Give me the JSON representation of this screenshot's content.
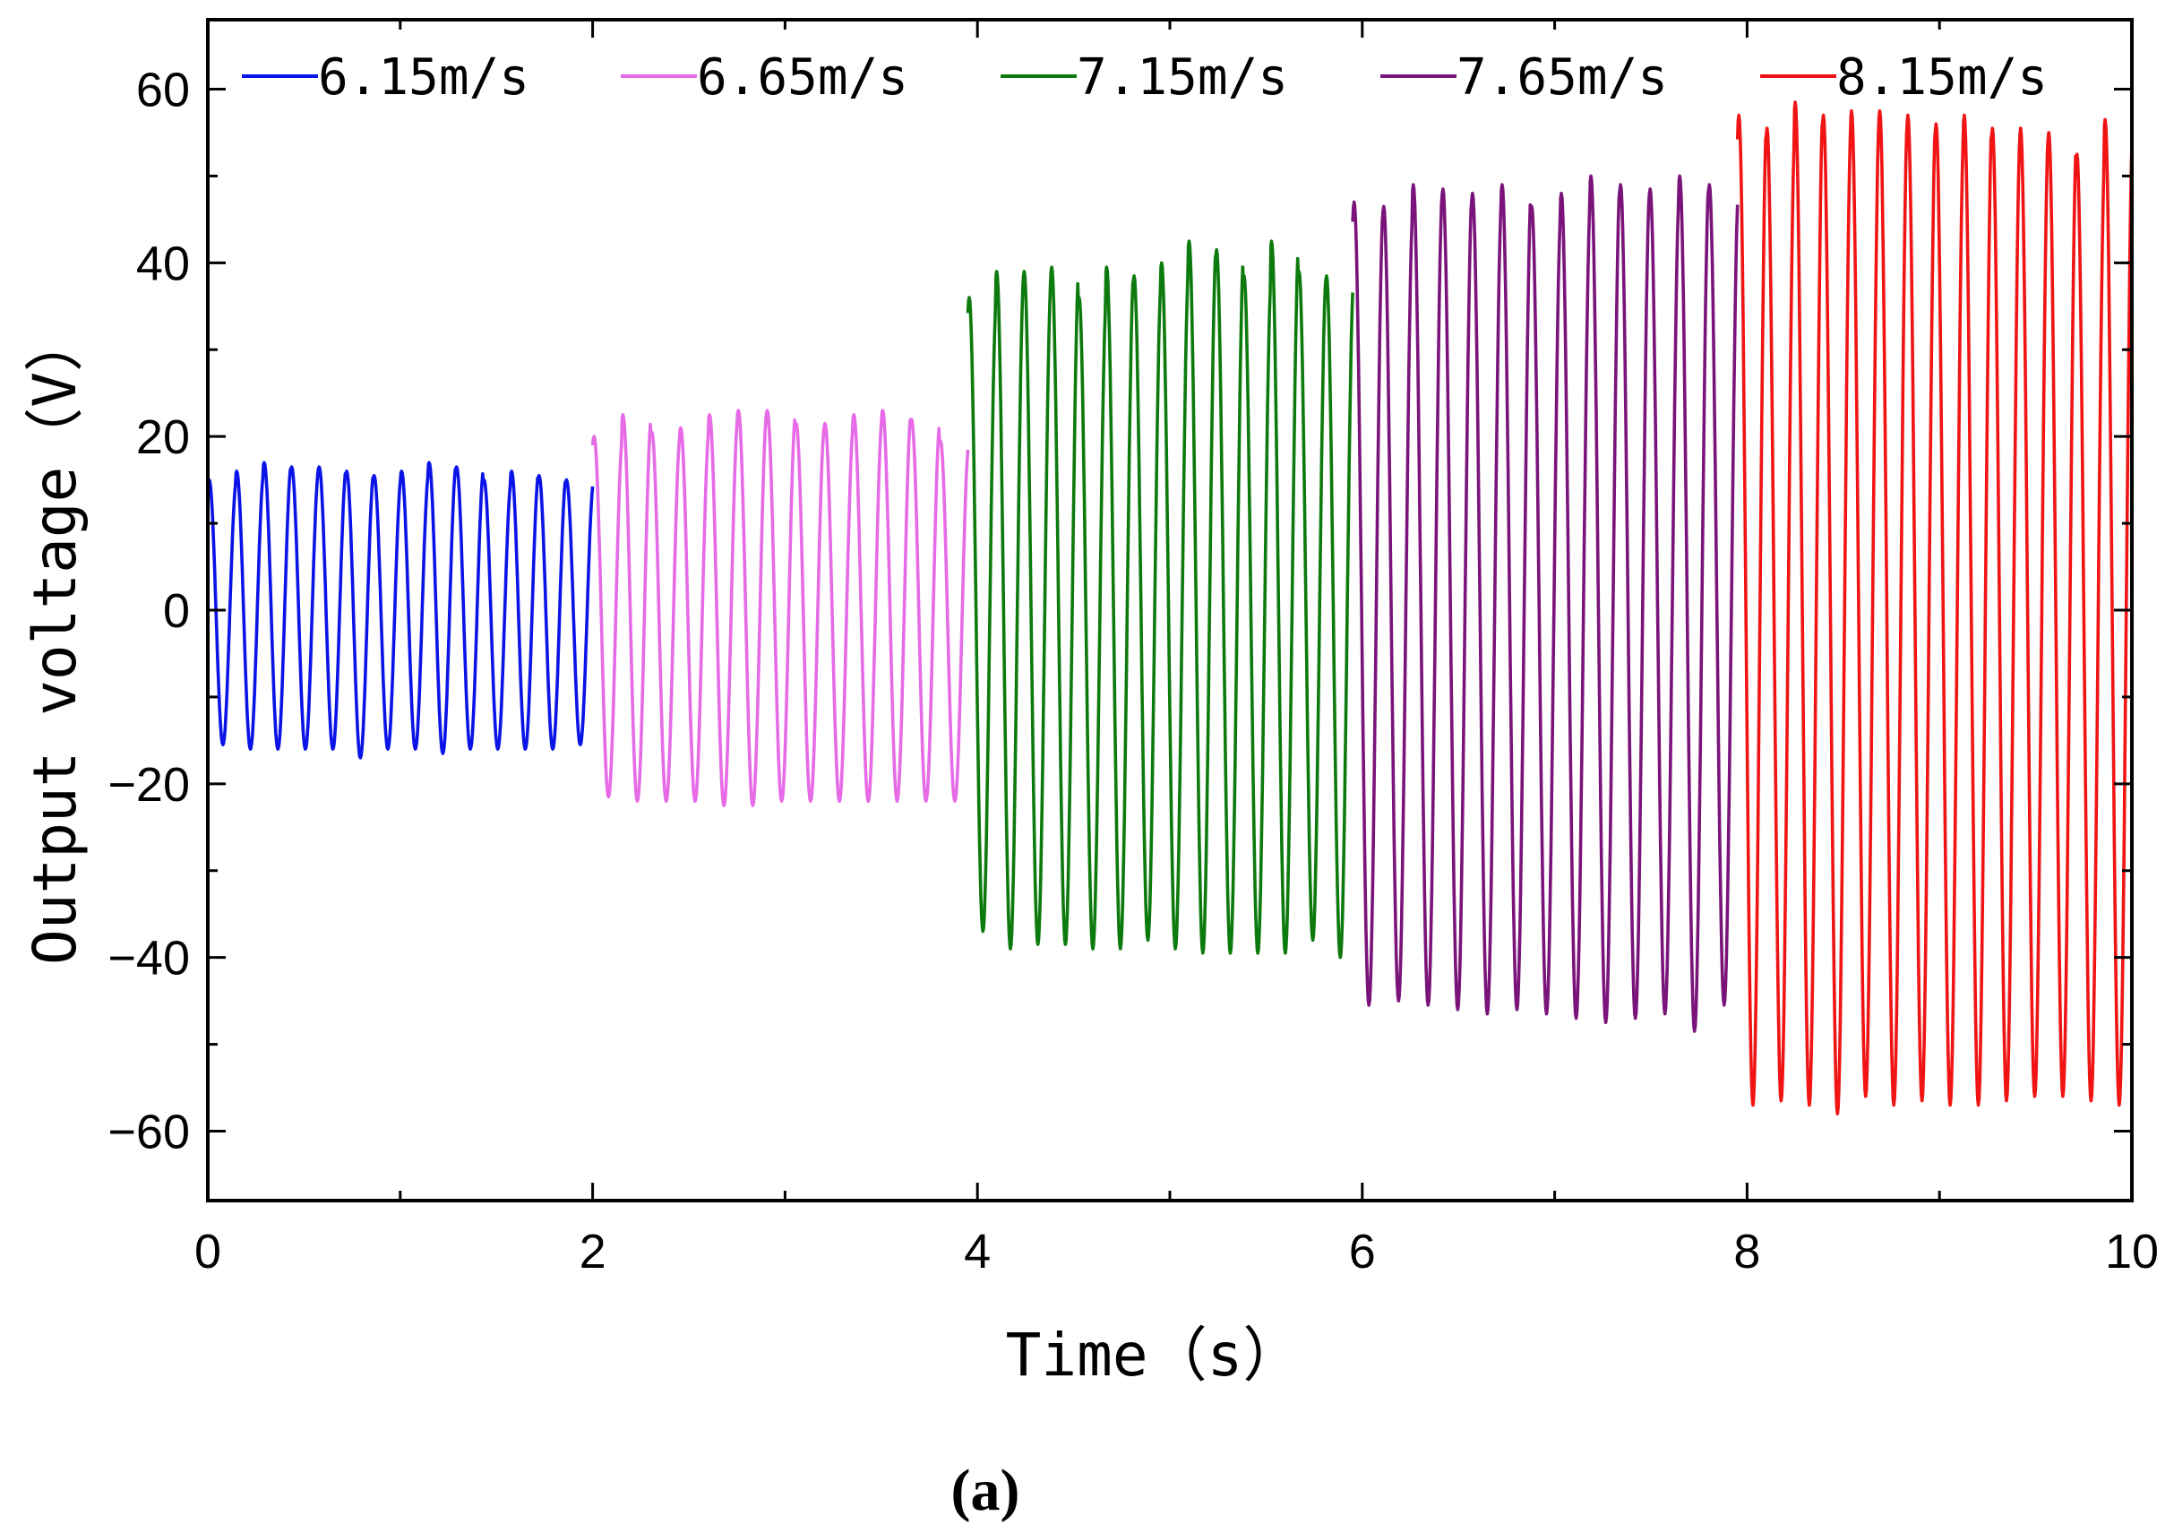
{
  "chart_data": {
    "type": "line",
    "title": "",
    "xlabel": "Time（s）",
    "ylabel": "Output voltage（V）",
    "xlim": [
      0,
      10
    ],
    "ylim": [
      -68,
      68
    ],
    "x_ticks": [
      "0",
      "2",
      "4",
      "6",
      "8",
      "10"
    ],
    "y_ticks": [
      "60",
      "40",
      "20",
      "0",
      "−20",
      "−40",
      "−60"
    ],
    "grid": false,
    "legend_position": "top",
    "panel_label": "(a)",
    "series": [
      {
        "name": "6.15m/s",
        "color": "#0a14e6",
        "t_start": 0,
        "t_end": 2.0,
        "cycles": 14,
        "peaks": [
          15,
          16,
          17,
          16.5,
          16.5,
          16,
          15.5,
          16,
          17,
          16.5,
          15,
          16,
          15.5,
          15
        ],
        "troughs": [
          -15.5,
          -16,
          -16,
          -16,
          -16,
          -17,
          -16,
          -16,
          -16.5,
          -16,
          -16,
          -16,
          -16,
          -15.5
        ]
      },
      {
        "name": "6.65m/s",
        "color": "#e66be6",
        "t_start": 2.0,
        "t_end": 3.95,
        "cycles": 13,
        "peaks": [
          20,
          22.5,
          20.5,
          21,
          22.5,
          23,
          23,
          21.5,
          21.5,
          22.5,
          23,
          22,
          19.5
        ],
        "troughs": [
          -21.5,
          -22,
          -22,
          -22,
          -22.5,
          -22.5,
          -22,
          -22,
          -22,
          -22,
          -22,
          -22,
          -22
        ]
      },
      {
        "name": "7.15m/s",
        "color": "#0d7a0d",
        "t_start": 3.95,
        "t_end": 5.95,
        "cycles": 14,
        "peaks": [
          36,
          39,
          39,
          39.5,
          36,
          39.5,
          38.5,
          40,
          42.5,
          41.5,
          38.5,
          42.5,
          39,
          38.5
        ],
        "troughs": [
          -37,
          -39,
          -38.5,
          -38.5,
          -39,
          -39,
          -38,
          -39,
          -39.5,
          -39.5,
          -39.5,
          -39.5,
          -38,
          -40
        ]
      },
      {
        "name": "7.65m/s",
        "color": "#7a147a",
        "t_start": 5.95,
        "t_end": 7.95,
        "cycles": 13,
        "peaks": [
          47,
          46.5,
          49,
          48.5,
          48,
          49,
          46.5,
          48,
          50,
          49,
          48.5,
          50,
          49
        ],
        "troughs": [
          -45.5,
          -45,
          -45.5,
          -46,
          -46.5,
          -46,
          -46.5,
          -47,
          -47.5,
          -47,
          -46.5,
          -48.5,
          -45.5
        ]
      },
      {
        "name": "8.15m/s",
        "color": "#f01414",
        "t_start": 7.95,
        "t_end": 10,
        "cycles": 14,
        "peaks": [
          57,
          55.5,
          58.5,
          57,
          57.5,
          57.5,
          57,
          56,
          57,
          55.5,
          55.5,
          55,
          52.5,
          56.5
        ],
        "troughs": [
          -57,
          -56.5,
          -57,
          -58,
          -56,
          -57,
          -56.5,
          -57,
          -57,
          -56.5,
          -56,
          -56,
          -56.5,
          -57
        ]
      }
    ]
  }
}
